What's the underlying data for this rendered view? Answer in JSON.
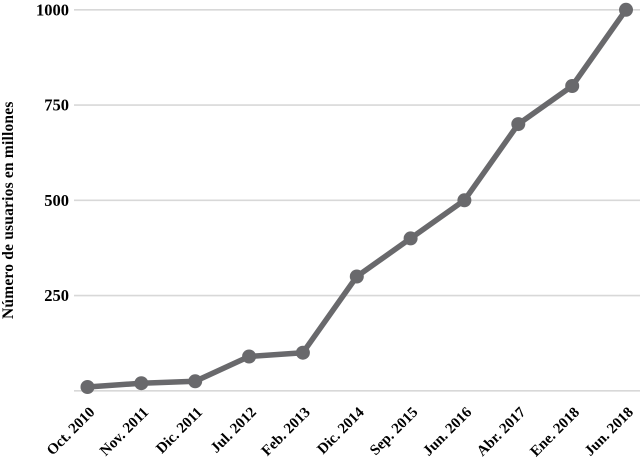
{
  "chart_data": {
    "type": "line",
    "title": "",
    "xlabel": "",
    "ylabel": "Número de usuarios en millones",
    "categories": [
      "Oct. 2010",
      "Nov. 2011",
      "Dic. 2011",
      "Jul. 2012",
      "Feb. 2013",
      "Dic. 2014",
      "Sep. 2015",
      "Jun. 2016",
      "Abr. 2017",
      "Ene. 2018",
      "Jun. 2018"
    ],
    "values": [
      10,
      20,
      25,
      90,
      100,
      300,
      400,
      500,
      700,
      800,
      1000
    ],
    "ylim": [
      0,
      1000
    ],
    "yticks": [
      250,
      500,
      750,
      1000
    ],
    "gridline_values": [
      0,
      250,
      500,
      750,
      1000
    ],
    "grid": "horizontal",
    "legend_position": "none",
    "marker": "circle",
    "colors": {
      "series": "#69696c",
      "gridline": "#d8d8d8",
      "text": "#000000",
      "background": "#ffffff"
    }
  }
}
